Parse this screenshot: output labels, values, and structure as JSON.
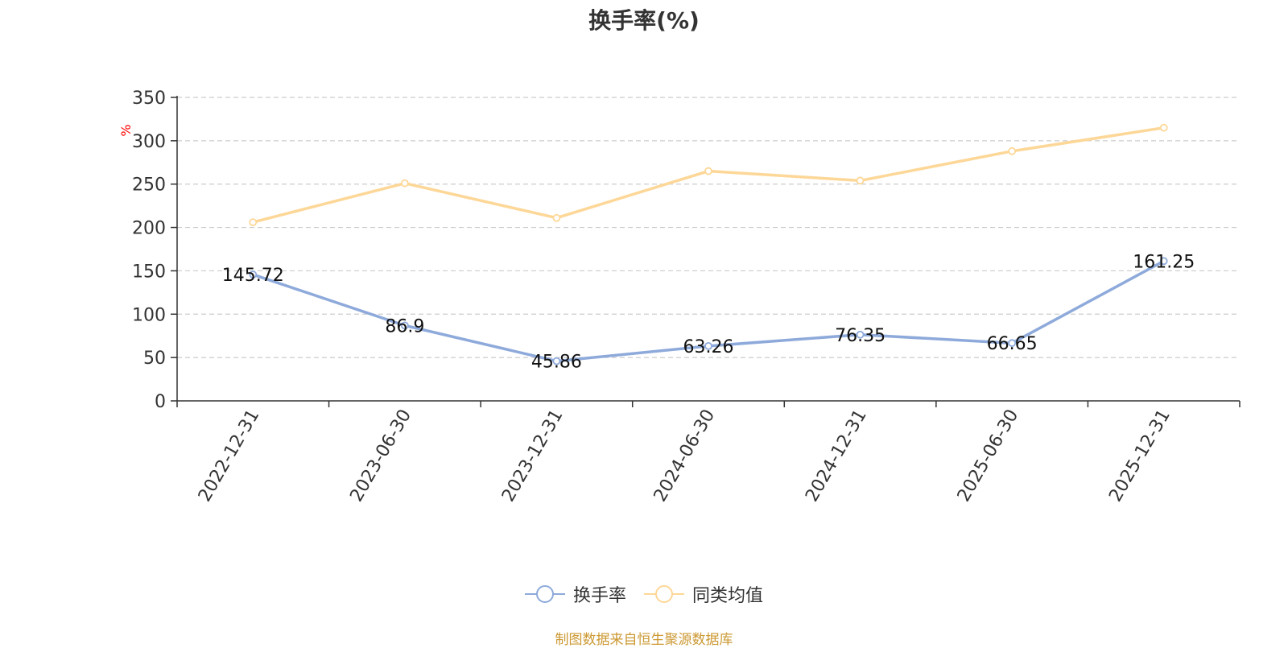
{
  "chart_data": {
    "type": "line",
    "title": "换手率(%)",
    "ylabel": "%",
    "xlabel": "",
    "categories": [
      "2022-12-31",
      "2023-06-30",
      "2023-12-31",
      "2024-06-30",
      "2024-12-31",
      "2025-06-30",
      "2025-12-31"
    ],
    "ylim": [
      0,
      350
    ],
    "yticks": [
      0,
      50,
      100,
      150,
      200,
      250,
      300,
      350
    ],
    "grid": true,
    "legend_position": "bottom-center",
    "series": [
      {
        "name": "换手率",
        "values": [
          145.72,
          86.9,
          45.86,
          63.26,
          76.35,
          66.65,
          161.25
        ],
        "labels": [
          "145.72",
          "86.9",
          "45.86",
          "63.26",
          "76.35",
          "66.65",
          "161.25"
        ],
        "color": "#8eaadb"
      },
      {
        "name": "同类均值",
        "values": [
          206,
          251,
          211,
          265,
          254,
          288,
          315
        ],
        "color": "#fdd797"
      }
    ]
  },
  "source_note": "制图数据来自恒生聚源数据库",
  "colors": {
    "axis": "#333333",
    "grid": "#cccccc",
    "ylabel": "#ff0000"
  }
}
